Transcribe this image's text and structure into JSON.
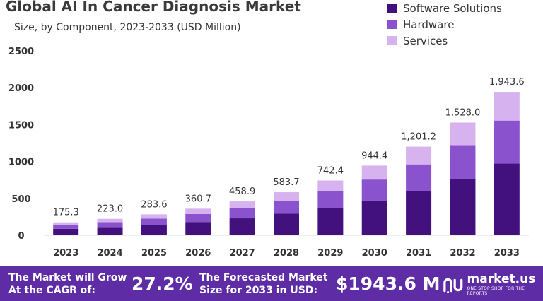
{
  "header": {
    "title": "Global AI In Cancer Diagnosis Market",
    "subtitle": "Size, by Component, 2023-2033 (USD Million)"
  },
  "legend": [
    {
      "label": "Software Solutions",
      "color": "#43117e"
    },
    {
      "label": "Hardware",
      "color": "#8a52cc"
    },
    {
      "label": "Services",
      "color": "#d6b2ef"
    }
  ],
  "chart_data": {
    "type": "bar",
    "stacked": true,
    "categories": [
      "2023",
      "2024",
      "2025",
      "2026",
      "2027",
      "2028",
      "2029",
      "2030",
      "2031",
      "2032",
      "2033"
    ],
    "series": [
      {
        "name": "Software Solutions",
        "color": "#43117e",
        "values": [
          87.6,
          111.5,
          141.8,
          180.4,
          229.5,
          291.9,
          371.2,
          472.2,
          600.6,
          764.0,
          971.8
        ]
      },
      {
        "name": "Hardware",
        "color": "#8a52cc",
        "values": [
          52.6,
          66.9,
          85.1,
          108.2,
          137.7,
          175.1,
          222.7,
          283.3,
          360.4,
          458.4,
          583.1
        ]
      },
      {
        "name": "Services",
        "color": "#d6b2ef",
        "values": [
          35.1,
          44.6,
          56.7,
          72.1,
          91.7,
          116.7,
          148.5,
          188.9,
          240.2,
          305.6,
          388.7
        ]
      }
    ],
    "totals": [
      "175.3",
      "223.0",
      "283.6",
      "360.7",
      "458.9",
      "583.7",
      "742.4",
      "944.4",
      "1,201.2",
      "1,528.0",
      "1,943.6"
    ],
    "yticks": [
      "0",
      "500",
      "1000",
      "1500",
      "2000",
      "2500"
    ],
    "ylim": [
      0,
      2500
    ],
    "grid": false,
    "legend_position": "top-right"
  },
  "footer": {
    "cagr_label_line1": "The Market will Grow",
    "cagr_label_line2": "At the CAGR of:",
    "cagr_value": "27.2%",
    "forecast_label_line1": "The Forecasted Market",
    "forecast_label_line2": "Size for 2033 in USD:",
    "forecast_value": "$1943.6 M",
    "brand_name": "market.us",
    "brand_tagline": "ONE STOP SHOP FOR THE REPORTS",
    "brand_icon": "market-us-logo-icon"
  }
}
